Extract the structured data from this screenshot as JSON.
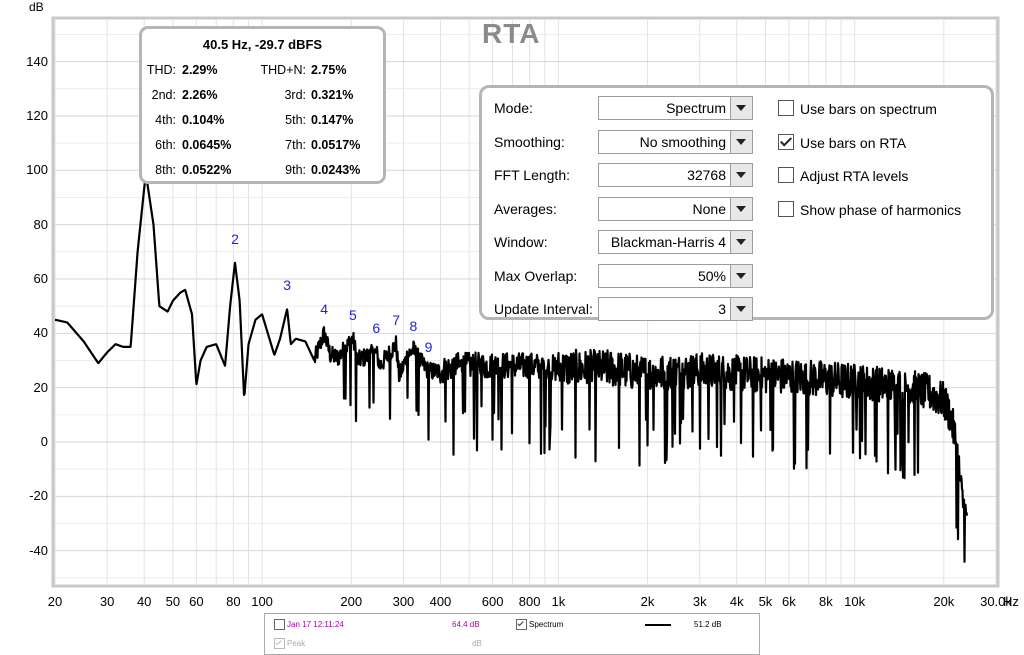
{
  "title": "RTA",
  "y_axis_label": "dB",
  "x_unit_label": "Hz",
  "x_tick_labels": [
    {
      "f": 20,
      "label": "20"
    },
    {
      "f": 30,
      "label": "30"
    },
    {
      "f": 40,
      "label": "40"
    },
    {
      "f": 50,
      "label": "50"
    },
    {
      "f": 60,
      "label": "60"
    },
    {
      "f": 80,
      "label": "80"
    },
    {
      "f": 100,
      "label": "100"
    },
    {
      "f": 200,
      "label": "200"
    },
    {
      "f": 300,
      "label": "300"
    },
    {
      "f": 400,
      "label": "400"
    },
    {
      "f": 600,
      "label": "600"
    },
    {
      "f": 800,
      "label": "800"
    },
    {
      "f": 1000,
      "label": "1k"
    },
    {
      "f": 2000,
      "label": "2k"
    },
    {
      "f": 3000,
      "label": "3k"
    },
    {
      "f": 4000,
      "label": "4k"
    },
    {
      "f": 5000,
      "label": "5k"
    },
    {
      "f": 6000,
      "label": "6k"
    },
    {
      "f": 8000,
      "label": "8k"
    },
    {
      "f": 10000,
      "label": "10k"
    },
    {
      "f": 20000,
      "label": "20k"
    },
    {
      "f": 30000,
      "label": "30.0k"
    }
  ],
  "y_tick_labels": [
    "140",
    "120",
    "100",
    "80",
    "60",
    "40",
    "20",
    "0",
    "-20",
    "-40"
  ],
  "harmonic_info": {
    "header": "40.5 Hz, -29.7 dBFS",
    "rows": [
      {
        "l1": "THD:",
        "v1": "2.29%",
        "l2": "THD+N:",
        "v2": "2.75%"
      },
      {
        "l1": "2nd:",
        "v1": "2.26%",
        "l2": "3rd:",
        "v2": "0.321%"
      },
      {
        "l1": "4th:",
        "v1": "0.104%",
        "l2": "5th:",
        "v2": "0.147%"
      },
      {
        "l1": "6th:",
        "v1": "0.0645%",
        "l2": "7th:",
        "v2": "0.0517%"
      },
      {
        "l1": "8th:",
        "v1": "0.0522%",
        "l2": "9th:",
        "v2": "0.0243%"
      }
    ]
  },
  "controls": {
    "rows": [
      {
        "label": "Mode:",
        "value": "Spectrum"
      },
      {
        "label": "Smoothing:",
        "value": "No  smoothing"
      },
      {
        "label": "FFT Length:",
        "value": "32768"
      },
      {
        "label": "Averages:",
        "value": "None"
      },
      {
        "label": "Window:",
        "value": "Blackman-Harris 4"
      },
      {
        "label": "Max Overlap:",
        "value": "50%"
      },
      {
        "label": "Update Interval:",
        "value": "3"
      }
    ],
    "checkboxes": [
      {
        "label": "Use bars on spectrum",
        "checked": false
      },
      {
        "label": "Use bars on RTA",
        "checked": true
      },
      {
        "label": "Adjust RTA levels",
        "checked": false
      },
      {
        "label": "Show phase of harmonics",
        "checked": false
      }
    ]
  },
  "legend": {
    "item1_label": "Jan 17 12:11:24",
    "item1_value": "64.4 dB",
    "item1_color": "#b000b0",
    "item2_label": "Spectrum",
    "item2_value": "51.2 dB",
    "peak_label": "Peak",
    "peak_value": "dB"
  },
  "chart_data": {
    "type": "line",
    "title": "RTA",
    "xlabel": "Hz",
    "ylabel": "dB",
    "x_scale": "log",
    "xlim": [
      20,
      30000
    ],
    "ylim": [
      -55,
      155
    ],
    "grid": true,
    "series": [
      {
        "name": "Spectrum",
        "color": "#000000",
        "x": [
          20,
          22,
          25,
          28,
          30,
          32,
          34,
          36,
          38,
          40.5,
          43,
          45,
          48,
          50,
          53,
          55,
          58,
          60,
          62,
          65,
          70,
          75,
          78,
          81,
          84,
          87,
          90,
          95,
          100,
          110,
          115,
          121.5,
          125,
          130,
          140,
          150,
          162,
          170,
          180,
          202.5,
          210,
          243,
          250,
          283.5,
          290,
          310,
          324,
          340,
          364.5,
          400,
          450,
          500,
          600,
          800,
          1000,
          1500,
          2000,
          3000,
          4000,
          6000,
          8000,
          10000,
          12000,
          15000,
          18000,
          20000,
          21000,
          22000,
          23000,
          24000
        ],
        "values": [
          45,
          44,
          37,
          29,
          33,
          36,
          35,
          35,
          70,
          99,
          80,
          50,
          48,
          52,
          55,
          56,
          47,
          21,
          30,
          35,
          36,
          28,
          50,
          66,
          52,
          16,
          36,
          45,
          47,
          32,
          38,
          49,
          36,
          38,
          37,
          30,
          40,
          32,
          31,
          38,
          30,
          33,
          28,
          36,
          24,
          32,
          34,
          30,
          26,
          26,
          28,
          28,
          28,
          28,
          27,
          27,
          25,
          26,
          25,
          24,
          23,
          22,
          21,
          20,
          18,
          15,
          10,
          0,
          -20,
          -30
        ]
      }
    ],
    "harmonic_markers": [
      {
        "label": "2",
        "f": 81,
        "db": 66
      },
      {
        "label": "3",
        "f": 121.5,
        "db": 49
      },
      {
        "label": "4",
        "f": 162,
        "db": 40
      },
      {
        "label": "5",
        "f": 202.5,
        "db": 38
      },
      {
        "label": "6",
        "f": 243,
        "db": 33
      },
      {
        "label": "7",
        "f": 283.5,
        "db": 36
      },
      {
        "label": "8",
        "f": 324,
        "db": 34
      },
      {
        "label": "9",
        "f": 364.5,
        "db": 26
      }
    ]
  }
}
